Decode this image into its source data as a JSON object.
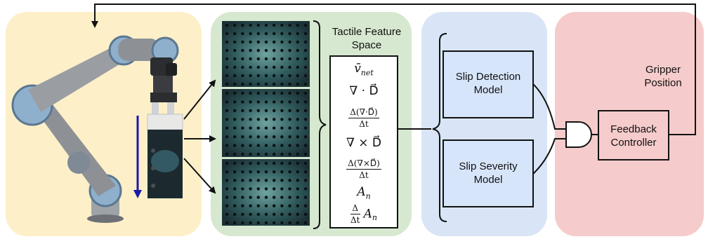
{
  "labels": {
    "tactile_feature_space": [
      "Tactile Feature",
      "Space"
    ],
    "gripper_position": [
      "Gripper",
      "Position"
    ],
    "slip_detection_model": [
      "Slip Detection",
      "Model"
    ],
    "slip_severity_model": [
      "Slip Severity",
      "Model"
    ],
    "feedback_controller": [
      "Feedback",
      "Controller"
    ]
  },
  "features": {
    "v_net": "v̄",
    "v_net_sub": "net",
    "divergence": "∇ · D⃗",
    "div_rate_num": "Δ(∇·D⃗)",
    "div_rate_den": "Δt",
    "curl": "∇ × D⃗",
    "curl_rate_num": "Δ(∇×D⃗)",
    "curl_rate_den": "Δt",
    "area": "A",
    "area_sub": "n",
    "area_rate_num": "Δ",
    "area_rate_den": "Δt",
    "area_rate_term": "A",
    "area_rate_sub": "n"
  },
  "colors": {
    "robot_panel": "#fdefc8",
    "tactile_panel": "#d6e8cf",
    "model_panel": "#d9e5f6",
    "controller_panel": "#f6cbcb",
    "model_box_fill": "#d7e5fa",
    "slip_arrow": "#1a1aa8",
    "tactile_image": "#1f3f44",
    "marker_dot": "#0b1012",
    "robot_body": "#8d9196",
    "robot_cap": "#8fb0cc"
  },
  "icons": [
    "robot-arm-icon",
    "gripper-icon",
    "tactile-image-icon",
    "and-gate-icon"
  ]
}
